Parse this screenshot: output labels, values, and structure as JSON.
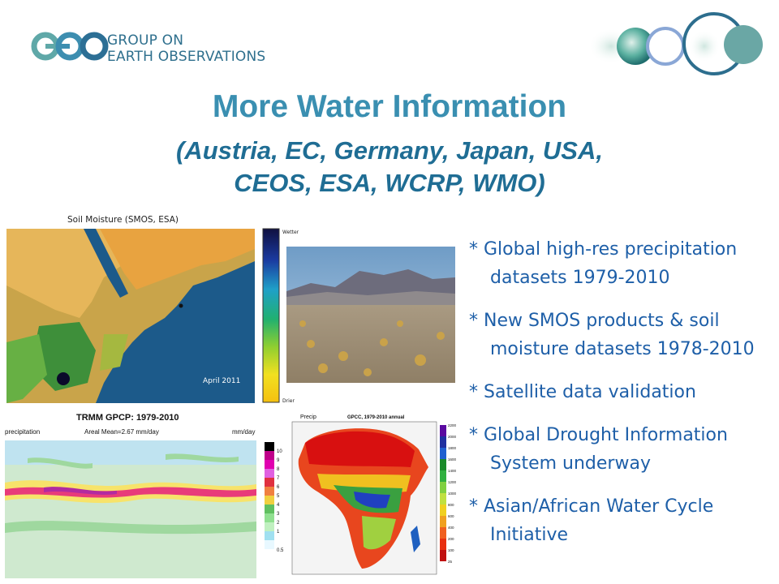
{
  "header": {
    "logo_text": "GEO",
    "org_line1": "GROUP ON",
    "org_line2": "EARTH OBSERVATIONS"
  },
  "slide": {
    "title": "More Water Information",
    "subtitle_line1": "(Austria, EC, Germany, Japan, USA,",
    "subtitle_line2": "CEOS, ESA, WCRP, WMO)"
  },
  "bullets": [
    "* Global high-res precipitation datasets 1979-2010",
    "* New SMOS products & soil moisture datasets 1978-2010",
    "* Satellite data validation",
    "* Global Drought Information System underway",
    "* Asian/African Water Cycle Initiative"
  ],
  "figures": {
    "soil": {
      "caption": "Soil Moisture (SMOS, ESA)",
      "date_label": "April 2011",
      "scale_top": "Wetter",
      "scale_bottom": "Drier"
    },
    "trmm": {
      "title": "TRMM GPCP: 1979-2010",
      "left_label": "precipitation",
      "mean_label": "Areal Mean=2.67 mm/day",
      "unit_label": "mm/day",
      "scale_ticks": [
        "10",
        "9",
        "8",
        "7",
        "6",
        "5",
        "4",
        "3",
        "2",
        "1",
        "0.5"
      ]
    },
    "gpcc": {
      "precip_label": "Precip",
      "title": "GPCC, 1979-2010 annual",
      "scale_ticks": [
        "2200",
        "2000",
        "1800",
        "1600",
        "1400",
        "1200",
        "1000",
        "800",
        "600",
        "400",
        "200",
        "100",
        "25"
      ]
    }
  },
  "colors": {
    "title": "#3a8fb1",
    "subtitle": "#1f6d94",
    "bullet_text": "#1e5fa8",
    "org_text": "#2e6f8d"
  }
}
